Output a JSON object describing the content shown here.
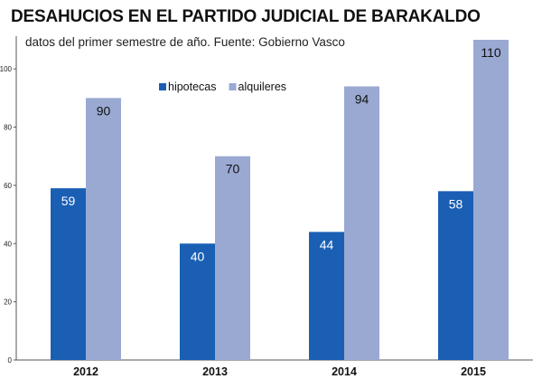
{
  "chart_data": {
    "type": "bar",
    "title": "DESAHUCIOS EN EL PARTIDO JUDICIAL DE BARAKALDO",
    "subtitle": "datos del primer semestre de año. Fuente: Gobierno Vasco",
    "categories": [
      "2012",
      "2013",
      "2014",
      "2015"
    ],
    "series": [
      {
        "name": "hipotecas",
        "values": [
          59,
          40,
          44,
          58
        ],
        "color": "#1a5fb4",
        "label_color": "#ffffff"
      },
      {
        "name": "alquileres",
        "values": [
          90,
          70,
          94,
          110
        ],
        "color": "#9aa9d2",
        "label_color": "#111111"
      }
    ],
    "ylim": [
      0,
      110
    ],
    "yticks": [
      0,
      20,
      40,
      60,
      80,
      100
    ],
    "xlabel": "",
    "ylabel": "",
    "grid": false,
    "legend": "top-left"
  }
}
